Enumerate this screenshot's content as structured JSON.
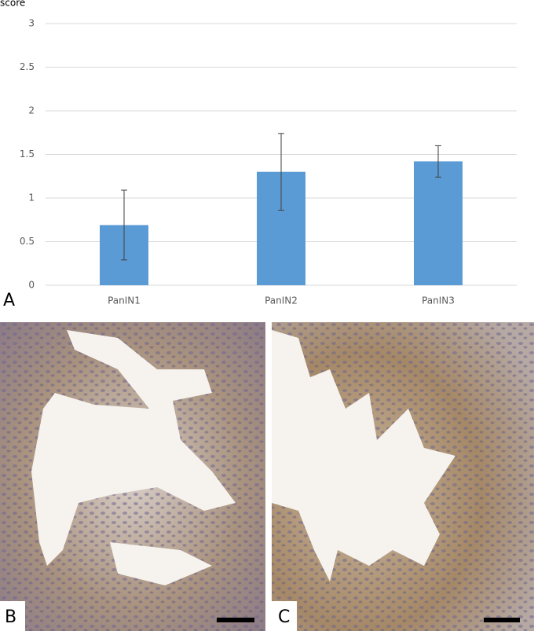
{
  "chart_data": {
    "type": "bar",
    "y_label": "score",
    "categories": [
      "PanIN1",
      "PanIN2",
      "PanIN3"
    ],
    "values": [
      0.69,
      1.3,
      1.42
    ],
    "errors": [
      0.4,
      0.44,
      0.18
    ],
    "color": "#5b9bd5",
    "ylim": [
      0,
      3
    ],
    "yticks": [
      0,
      0.5,
      1,
      1.5,
      2,
      2.5,
      3
    ],
    "grid": true
  },
  "panel_labels": [
    "A",
    "B",
    "C"
  ]
}
